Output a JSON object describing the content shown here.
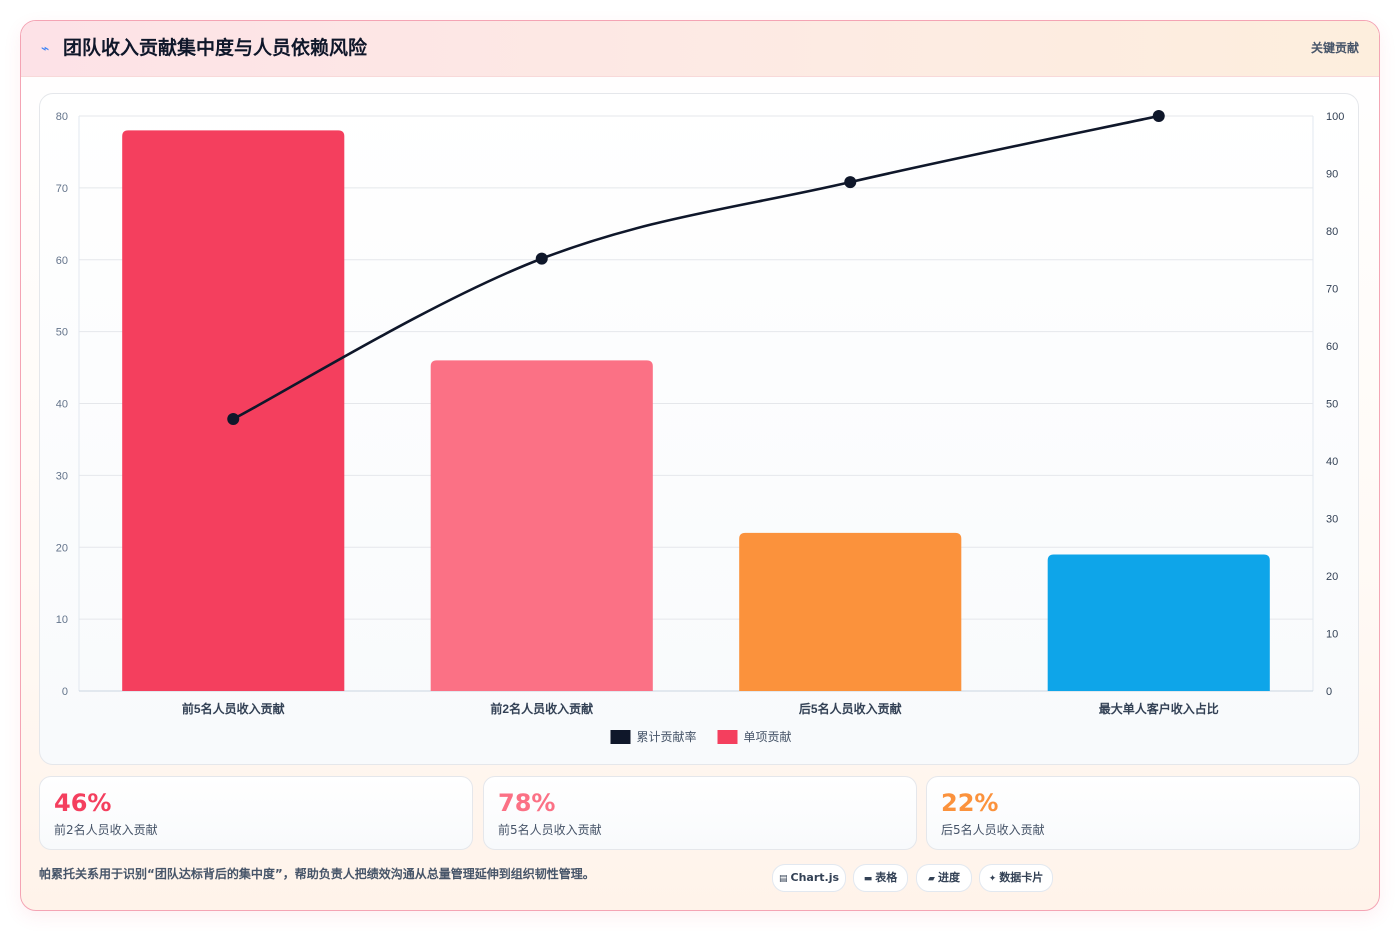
{
  "header": {
    "icon": "trend-icon",
    "title": "团队收入贡献集中度与人员依赖风险",
    "badge": "关键贡献"
  },
  "chart_data": {
    "type": "bar",
    "categories": [
      "前5名人员收入贡献",
      "前2名人员收入贡献",
      "后5名人员收入贡献",
      "最大单人客户收入占比"
    ],
    "series": [
      {
        "name": "单项贡献",
        "type": "bar",
        "axis": "left",
        "values": [
          78,
          46,
          22,
          19
        ],
        "colors": [
          "#f43f5e",
          "#fb7185",
          "#fb923c",
          "#0ea5e9"
        ]
      },
      {
        "name": "累计贡献率",
        "type": "line",
        "axis": "right",
        "values": [
          47.3,
          75.2,
          88.5,
          100
        ],
        "color": "#0f172a"
      }
    ],
    "ylim_left": [
      0,
      80
    ],
    "yticks_left": [
      0,
      10,
      20,
      30,
      40,
      50,
      60,
      70,
      80
    ],
    "ylim_right": [
      0,
      100
    ],
    "yticks_right": [
      0,
      10,
      20,
      30,
      40,
      50,
      60,
      70,
      80,
      90,
      100
    ],
    "grid": true,
    "legend_position": "bottom",
    "legend": [
      {
        "label": "累计贡献率",
        "color": "#0f172a"
      },
      {
        "label": "单项贡献",
        "color": "#f43f5e"
      }
    ]
  },
  "kpis": [
    {
      "value": "46%",
      "label": "前2名人员收入贡献",
      "color": "#f43f5e"
    },
    {
      "value": "78%",
      "label": "前5名人员收入贡献",
      "color": "#fb7185"
    },
    {
      "value": "22%",
      "label": "后5名人员收入贡献",
      "color": "#fb923c"
    }
  ],
  "footnote": "帕累托关系用于识别“团队达标背后的集中度”，帮助负责人把绩效沟通从总量管理延伸到组织韧性管理。",
  "chips": [
    {
      "icon": "chart-icon",
      "glyph": "▤",
      "label": "Chart.js"
    },
    {
      "icon": "table-icon",
      "glyph": "▬",
      "label": "表格"
    },
    {
      "icon": "progress-icon",
      "glyph": "▰",
      "label": "进度"
    },
    {
      "icon": "card-icon",
      "glyph": "✦",
      "label": "数据卡片"
    }
  ]
}
